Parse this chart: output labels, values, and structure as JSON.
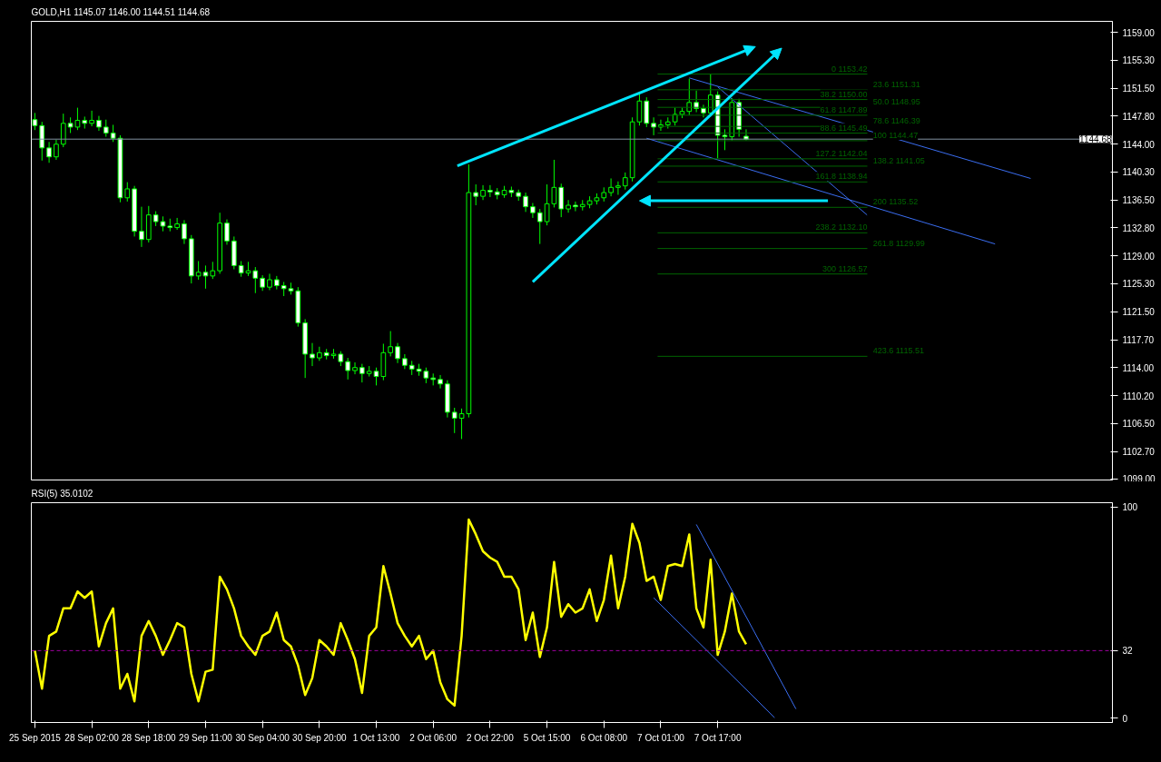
{
  "chart_data": [
    {
      "type": "candlestick",
      "title": "GOLD,H1  1145.07 1146.00 1144.51 1144.68",
      "color": "#00ff00",
      "categories": [
        null,
        null,
        null,
        null,
        null,
        null,
        null,
        null,
        null,
        null,
        null,
        null,
        null,
        null,
        null,
        null,
        null,
        null,
        null,
        null,
        null,
        null,
        null,
        null,
        null,
        null,
        null,
        null,
        null,
        null,
        null,
        null,
        null,
        null,
        null,
        null,
        null,
        null,
        null,
        null,
        null,
        null,
        null,
        null,
        null,
        null,
        null,
        null,
        null,
        null,
        null,
        null,
        null,
        null,
        null,
        null,
        null,
        null,
        null,
        null,
        null,
        null,
        null,
        null,
        null,
        null,
        null,
        null,
        null,
        null,
        null,
        null,
        null,
        null,
        null,
        null,
        null,
        null,
        null,
        null,
        null,
        null,
        null,
        null,
        null,
        null,
        null,
        null,
        null,
        null,
        null,
        null,
        null,
        null,
        null,
        null,
        null,
        null,
        null,
        null,
        null,
        null,
        null,
        null,
        null,
        null,
        null,
        null,
        null,
        null,
        null,
        null,
        null,
        null,
        null,
        null,
        null,
        null,
        null,
        null,
        null,
        null,
        null,
        null,
        null,
        null,
        null,
        null,
        null,
        null,
        null,
        null,
        null,
        null,
        null,
        null,
        null,
        null,
        null,
        null,
        null,
        null,
        null,
        null,
        null,
        null,
        null,
        null,
        null,
        null,
        null,
        null
      ],
      "ohlc": [
        [
          1147.3,
          1148.2,
          1145.9,
          1146.5
        ],
        [
          1146.5,
          1147.0,
          1141.8,
          1143.5
        ],
        [
          1143.5,
          1144.3,
          1141.5,
          1142.3
        ],
        [
          1142.3,
          1144.6,
          1141.9,
          1144.0
        ],
        [
          1144.0,
          1148.1,
          1143.6,
          1146.8
        ],
        [
          1146.8,
          1147.6,
          1145.5,
          1146.3
        ],
        [
          1146.3,
          1148.9,
          1145.9,
          1147.2
        ],
        [
          1147.2,
          1147.7,
          1146.1,
          1146.8
        ],
        [
          1146.8,
          1148.5,
          1146.4,
          1147.2
        ],
        [
          1147.2,
          1147.8,
          1145.8,
          1146.3
        ],
        [
          1146.3,
          1147.3,
          1145.0,
          1145.5
        ],
        [
          1145.5,
          1146.6,
          1144.3,
          1144.8
        ],
        [
          1144.8,
          1145.2,
          1136.2,
          1136.8
        ],
        [
          1136.8,
          1138.9,
          1136.3,
          1138.0
        ],
        [
          1138.0,
          1138.4,
          1131.6,
          1132.3
        ],
        [
          1132.3,
          1135.6,
          1130.2,
          1131.2
        ],
        [
          1131.2,
          1135.7,
          1130.8,
          1134.5
        ],
        [
          1134.5,
          1135.0,
          1133.0,
          1133.6
        ],
        [
          1133.6,
          1134.3,
          1132.3,
          1133.0
        ],
        [
          1133.0,
          1134.0,
          1132.3,
          1132.8
        ],
        [
          1132.8,
          1134.1,
          1132.5,
          1133.3
        ],
        [
          1133.3,
          1133.8,
          1130.6,
          1131.3
        ],
        [
          1131.3,
          1131.8,
          1125.3,
          1126.3
        ],
        [
          1126.3,
          1128.3,
          1125.8,
          1126.8
        ],
        [
          1126.8,
          1127.7,
          1124.6,
          1126.3
        ],
        [
          1126.3,
          1128.2,
          1125.9,
          1127.0
        ],
        [
          1127.0,
          1134.8,
          1126.6,
          1133.4
        ],
        [
          1133.4,
          1133.9,
          1130.5,
          1131.0
        ],
        [
          1131.0,
          1131.6,
          1127.2,
          1127.7
        ],
        [
          1127.7,
          1128.3,
          1126.2,
          1126.7
        ],
        [
          1126.7,
          1128.2,
          1126.3,
          1127.0
        ],
        [
          1127.0,
          1127.5,
          1124.0,
          1126.0
        ],
        [
          1126.0,
          1126.4,
          1124.3,
          1124.8
        ],
        [
          1124.8,
          1126.6,
          1124.4,
          1125.8
        ],
        [
          1125.8,
          1126.3,
          1124.5,
          1125.0
        ],
        [
          1125.0,
          1125.5,
          1123.6,
          1124.6
        ],
        [
          1124.6,
          1125.4,
          1123.8,
          1124.3
        ],
        [
          1124.3,
          1124.8,
          1119.5,
          1120.0
        ],
        [
          1120.0,
          1120.5,
          1112.6,
          1115.8
        ],
        [
          1115.8,
          1117.3,
          1114.2,
          1115.3
        ],
        [
          1115.3,
          1116.8,
          1114.9,
          1116.0
        ],
        [
          1116.0,
          1116.5,
          1115.1,
          1115.6
        ],
        [
          1115.6,
          1116.5,
          1115.2,
          1115.8
        ],
        [
          1115.8,
          1116.2,
          1114.2,
          1114.8
        ],
        [
          1114.8,
          1115.3,
          1112.4,
          1113.6
        ],
        [
          1113.6,
          1114.7,
          1113.1,
          1114.0
        ],
        [
          1114.0,
          1114.5,
          1112.0,
          1113.2
        ],
        [
          1113.2,
          1114.2,
          1112.8,
          1113.5
        ],
        [
          1113.5,
          1114.0,
          1111.6,
          1112.8
        ],
        [
          1112.8,
          1117.2,
          1112.3,
          1116.0
        ],
        [
          1116.0,
          1118.9,
          1115.5,
          1116.8
        ],
        [
          1116.8,
          1117.3,
          1114.6,
          1115.2
        ],
        [
          1115.2,
          1115.8,
          1113.8,
          1114.3
        ],
        [
          1114.3,
          1114.9,
          1113.0,
          1113.8
        ],
        [
          1113.8,
          1114.5,
          1112.9,
          1113.5
        ],
        [
          1113.5,
          1114.0,
          1111.9,
          1112.6
        ],
        [
          1112.6,
          1113.2,
          1111.6,
          1112.4
        ],
        [
          1112.4,
          1113.0,
          1111.2,
          1111.8
        ],
        [
          1111.8,
          1112.3,
          1107.3,
          1108.0
        ],
        [
          1108.0,
          1108.6,
          1105.2,
          1107.2
        ],
        [
          1107.2,
          1108.5,
          1104.4,
          1107.8
        ],
        [
          1107.8,
          1141.3,
          1107.3,
          1137.5
        ],
        [
          1137.5,
          1138.6,
          1135.8,
          1137.0
        ],
        [
          1137.0,
          1138.5,
          1136.5,
          1137.8
        ],
        [
          1137.8,
          1138.5,
          1136.9,
          1137.6
        ],
        [
          1137.6,
          1138.1,
          1136.6,
          1137.2
        ],
        [
          1137.2,
          1138.4,
          1136.8,
          1137.8
        ],
        [
          1137.8,
          1138.3,
          1136.9,
          1137.5
        ],
        [
          1137.5,
          1137.9,
          1136.4,
          1137.0
        ],
        [
          1137.0,
          1137.5,
          1134.9,
          1135.6
        ],
        [
          1135.6,
          1136.1,
          1134.1,
          1134.8
        ],
        [
          1134.8,
          1135.3,
          1130.6,
          1133.6
        ],
        [
          1133.6,
          1138.6,
          1133.1,
          1136.0
        ],
        [
          1136.0,
          1141.9,
          1135.5,
          1138.2
        ],
        [
          1138.2,
          1138.7,
          1134.2,
          1135.3
        ],
        [
          1135.3,
          1136.5,
          1134.8,
          1135.8
        ],
        [
          1135.8,
          1136.3,
          1135.0,
          1135.6
        ],
        [
          1135.6,
          1136.5,
          1135.1,
          1135.9
        ],
        [
          1135.9,
          1137.0,
          1135.4,
          1136.4
        ],
        [
          1136.4,
          1137.4,
          1135.9,
          1136.8
        ],
        [
          1136.8,
          1138.2,
          1136.3,
          1137.5
        ],
        [
          1137.5,
          1139.4,
          1137.0,
          1138.2
        ],
        [
          1138.2,
          1139.0,
          1137.2,
          1138.4
        ],
        [
          1138.4,
          1140.2,
          1137.9,
          1139.5
        ],
        [
          1139.5,
          1147.6,
          1139.0,
          1147.0
        ],
        [
          1147.0,
          1151.0,
          1146.5,
          1149.8
        ],
        [
          1149.8,
          1150.3,
          1146.3,
          1146.8
        ],
        [
          1146.8,
          1147.6,
          1145.2,
          1146.3
        ],
        [
          1146.3,
          1147.3,
          1145.8,
          1146.6
        ],
        [
          1146.6,
          1147.6,
          1146.1,
          1147.0
        ],
        [
          1147.0,
          1148.9,
          1146.5,
          1148.0
        ],
        [
          1148.0,
          1148.9,
          1147.5,
          1148.4
        ],
        [
          1148.4,
          1152.8,
          1147.9,
          1149.6
        ],
        [
          1149.6,
          1151.2,
          1148.3,
          1148.8
        ],
        [
          1148.8,
          1149.3,
          1147.6,
          1148.2
        ],
        [
          1148.2,
          1153.4,
          1147.7,
          1150.6
        ],
        [
          1150.6,
          1151.1,
          1142.1,
          1145.2
        ],
        [
          1145.2,
          1146.0,
          1143.2,
          1145.0
        ],
        [
          1145.0,
          1150.2,
          1144.5,
          1149.6
        ],
        [
          1149.6,
          1150.1,
          1145.0,
          1146.0
        ],
        [
          1145.07,
          1146.0,
          1144.51,
          1144.68
        ],
        null,
        null,
        null,
        null,
        null,
        null,
        null,
        null,
        null,
        null,
        null,
        null,
        null,
        null,
        null,
        null,
        null,
        null,
        null,
        null,
        null,
        null,
        null,
        null,
        null,
        null,
        null,
        null,
        null,
        null,
        null,
        null,
        null,
        null,
        null,
        null,
        null,
        null,
        null,
        null,
        null,
        null,
        null,
        null,
        null,
        null,
        null,
        null,
        null,
        null,
        null
      ],
      "series": [
        {
          "type": "line",
          "color": "#3a6df0",
          "values": [
            null,
            null,
            null,
            null,
            null,
            null,
            null,
            null,
            null,
            null,
            null,
            null,
            null,
            null,
            null,
            null,
            null,
            null,
            null,
            null,
            null,
            null,
            null,
            null,
            null,
            null,
            null,
            null,
            null,
            null,
            null,
            null,
            null,
            null,
            null,
            null,
            null,
            null,
            null,
            null,
            null,
            null,
            null,
            null,
            null,
            null,
            null,
            null,
            null,
            null,
            null,
            null,
            null,
            null,
            null,
            null,
            null,
            null,
            null,
            null,
            null,
            null,
            null,
            null,
            null,
            null,
            null,
            null,
            null,
            null,
            null,
            null,
            null,
            null,
            null,
            null,
            null,
            null,
            null,
            null,
            null,
            null,
            null,
            null,
            null,
            null,
            1144.8,
            null,
            null,
            null,
            null,
            null,
            null,
            null,
            null,
            null,
            null,
            null,
            null,
            null,
            null,
            null,
            null,
            null,
            null,
            null,
            null,
            null,
            null,
            null,
            null,
            null,
            null,
            null,
            null,
            null,
            null,
            null,
            null,
            null,
            null,
            null,
            null,
            null,
            null,
            null,
            null,
            null,
            null,
            null,
            null,
            null,
            null,
            null,
            null,
            1130.6,
            null,
            null,
            null,
            null,
            null,
            null,
            null,
            null,
            null,
            null,
            null,
            null,
            null,
            null,
            null,
            null
          ]
        },
        {
          "type": "line",
          "color": "#3a6df0",
          "values": [
            null,
            null,
            null,
            null,
            null,
            null,
            null,
            null,
            null,
            null,
            null,
            null,
            null,
            null,
            null,
            null,
            null,
            null,
            null,
            null,
            null,
            null,
            null,
            null,
            null,
            null,
            null,
            null,
            null,
            null,
            null,
            null,
            null,
            null,
            null,
            null,
            null,
            null,
            null,
            null,
            null,
            null,
            null,
            null,
            null,
            null,
            null,
            null,
            null,
            null,
            null,
            null,
            null,
            null,
            null,
            null,
            null,
            null,
            null,
            null,
            null,
            null,
            null,
            null,
            null,
            null,
            null,
            null,
            null,
            null,
            null,
            null,
            null,
            null,
            null,
            null,
            null,
            null,
            null,
            null,
            null,
            null,
            null,
            null,
            null,
            null,
            null,
            null,
            null,
            null,
            null,
            null,
            1152.9,
            null,
            null,
            null,
            null,
            null,
            null,
            null,
            null,
            null,
            null,
            null,
            null,
            null,
            null,
            null,
            null,
            null,
            null,
            null,
            null,
            null,
            null,
            null,
            null,
            null,
            null,
            null,
            null,
            null,
            null,
            null,
            null,
            null,
            null,
            null,
            null,
            null,
            null,
            null,
            null,
            null,
            null,
            null,
            null,
            null,
            null,
            null,
            1139.4,
            null,
            null,
            null,
            null,
            null,
            null,
            null,
            null,
            null,
            null,
            null
          ]
        },
        {
          "type": "line",
          "color": "#3a6df0",
          "values": [
            null,
            null,
            null,
            null,
            null,
            null,
            null,
            null,
            null,
            null,
            null,
            null,
            null,
            null,
            null,
            null,
            null,
            null,
            null,
            null,
            null,
            null,
            null,
            null,
            null,
            null,
            null,
            null,
            null,
            null,
            null,
            null,
            null,
            null,
            null,
            null,
            null,
            null,
            null,
            null,
            null,
            null,
            null,
            null,
            null,
            null,
            null,
            null,
            null,
            null,
            null,
            null,
            null,
            null,
            null,
            null,
            null,
            null,
            null,
            null,
            null,
            null,
            null,
            null,
            null,
            null,
            null,
            null,
            null,
            null,
            null,
            null,
            null,
            null,
            null,
            null,
            null,
            null,
            null,
            null,
            null,
            null,
            null,
            null,
            null,
            null,
            null,
            null,
            null,
            null,
            null,
            null,
            null,
            null,
            null,
            null,
            1151.7,
            null,
            null,
            null,
            null,
            null,
            null,
            null,
            null,
            null,
            null,
            null,
            null,
            null,
            null,
            null,
            null,
            null,
            null,
            null,
            null,
            1134.5,
            null,
            null,
            null,
            null,
            null,
            null,
            null,
            null,
            null,
            null,
            null,
            null,
            null,
            null,
            null,
            null,
            null,
            null,
            null,
            null,
            null,
            null,
            null,
            null,
            null,
            null,
            null,
            null,
            null,
            null,
            null,
            null,
            null,
            null
          ]
        }
      ],
      "ylim": [
        1098.9,
        1160.5
      ],
      "yticks": [
        {
          "value": 1159,
          "label": "1159.00"
        },
        {
          "value": 1155.3,
          "label": "1155.30"
        },
        {
          "value": 1151.5,
          "label": "1151.50"
        },
        {
          "value": 1147.8,
          "label": "1147.80"
        },
        {
          "value": 1144,
          "label": "1144.00"
        },
        {
          "value": 1140.3,
          "label": "1140.30"
        },
        {
          "value": 1136.5,
          "label": "1136.50"
        },
        {
          "value": 1132.8,
          "label": "1132.80"
        },
        {
          "value": 1129,
          "label": "1129.00"
        },
        {
          "value": 1125.3,
          "label": "1125.30"
        },
        {
          "value": 1121.5,
          "label": "1121.50"
        },
        {
          "value": 1117.7,
          "label": "1117.70"
        },
        {
          "value": 1114,
          "label": "1114.00"
        },
        {
          "value": 1110.2,
          "label": "1110.20"
        },
        {
          "value": 1106.5,
          "label": "1106.50"
        },
        {
          "value": 1102.7,
          "label": "1102.70"
        },
        {
          "value": 1099,
          "label": "1099.00"
        }
      ],
      "tick_labels": "y",
      "ref_lines": [
        {
          "axis": "y",
          "value": 1144.68,
          "label": "1144.68",
          "color": "#8090a0"
        },
        {
          "axis": "y",
          "value": 1153.42,
          "label": "0 1153.42",
          "color": "#006400"
        },
        {
          "axis": "y",
          "value": 1151.31,
          "label": "23.6 1151.31",
          "color": "#006400"
        },
        {
          "axis": "y",
          "value": 1150.0,
          "label": "38.2 1150.00",
          "color": "#006400"
        },
        {
          "axis": "y",
          "value": 1148.95,
          "label": "50.0 1148.95",
          "color": "#006400"
        },
        {
          "axis": "y",
          "value": 1147.89,
          "label": "61.8 1147.89",
          "color": "#006400"
        },
        {
          "axis": "y",
          "value": 1146.39,
          "label": "78.6 1146.39",
          "color": "#006400"
        },
        {
          "axis": "y",
          "value": 1145.49,
          "label": "88.6 1145.49",
          "color": "#006400"
        },
        {
          "axis": "y",
          "value": 1144.47,
          "label": "100 1144.47",
          "color": "#006400"
        },
        {
          "axis": "y",
          "value": 1142.04,
          "label": "127.2 1142.04",
          "color": "#006400"
        },
        {
          "axis": "y",
          "value": 1141.05,
          "label": "138.2 1141.05",
          "color": "#006400"
        },
        {
          "axis": "y",
          "value": 1138.94,
          "label": "161.8 1138.94",
          "color": "#006400"
        },
        {
          "axis": "y",
          "value": 1135.52,
          "label": "200 1135.52",
          "color": "#006400"
        },
        {
          "axis": "y",
          "value": 1132.1,
          "label": "238.2 1132.10",
          "color": "#006400"
        },
        {
          "axis": "y",
          "value": 1129.99,
          "label": "261.8 1129.99",
          "color": "#006400"
        },
        {
          "axis": "y",
          "value": 1126.57,
          "label": "300 1126.57",
          "color": "#006400"
        },
        {
          "axis": "y",
          "value": 1115.51,
          "label": "423.6 1115.51",
          "color": "#006400"
        }
      ]
    },
    {
      "type": "line",
      "title": "RSI(5) 35.0102",
      "categories": [
        "25 Sep 2015",
        null,
        null,
        null,
        null,
        null,
        null,
        null,
        "28 Sep 02:00",
        null,
        null,
        null,
        null,
        null,
        null,
        null,
        "28 Sep 18:00",
        null,
        null,
        null,
        null,
        null,
        null,
        null,
        "29 Sep 11:00",
        null,
        null,
        null,
        null,
        null,
        null,
        null,
        "30 Sep 04:00",
        null,
        null,
        null,
        null,
        null,
        null,
        null,
        "30 Sep 20:00",
        null,
        null,
        null,
        null,
        null,
        null,
        null,
        "1 Oct 13:00",
        null,
        null,
        null,
        null,
        null,
        null,
        null,
        "2 Oct 06:00",
        null,
        null,
        null,
        null,
        null,
        null,
        null,
        "2 Oct 22:00",
        null,
        null,
        null,
        null,
        null,
        null,
        null,
        "5 Oct 15:00",
        null,
        null,
        null,
        null,
        null,
        null,
        null,
        "6 Oct 08:00",
        null,
        null,
        null,
        null,
        null,
        null,
        null,
        "7 Oct 01:00",
        null,
        null,
        null,
        null,
        null,
        null,
        null,
        "7 Oct 17:00",
        null,
        null,
        null,
        null,
        null,
        null,
        null,
        null,
        null,
        null,
        null,
        null,
        null,
        null,
        null,
        null,
        null,
        null,
        null,
        null,
        null,
        null,
        null,
        null,
        null,
        null,
        null,
        null,
        null,
        null,
        null,
        null,
        null,
        null,
        null,
        null,
        null,
        null,
        null,
        null,
        null,
        null,
        null,
        null,
        null,
        null,
        null,
        null,
        null,
        null,
        null,
        null,
        null,
        null,
        null
      ],
      "series": [
        {
          "color": "#ffff00",
          "values": [
            32,
            14,
            39,
            41,
            52,
            52,
            60,
            57,
            60,
            34,
            45,
            52,
            14,
            21,
            8,
            39,
            46,
            39,
            30,
            37,
            45,
            43,
            21,
            8,
            22,
            23,
            67,
            61,
            52,
            39,
            34,
            30,
            39,
            41,
            50,
            37,
            34,
            25,
            11,
            19,
            37,
            34,
            30,
            45,
            37,
            28,
            12,
            39,
            43,
            72,
            59,
            45,
            39,
            34,
            39,
            28,
            32,
            17,
            9,
            6,
            39,
            94,
            87,
            79,
            76,
            74,
            67,
            67,
            61,
            37,
            50,
            29,
            43,
            74,
            48,
            54,
            50,
            52,
            61,
            46,
            56,
            77,
            52,
            67,
            92,
            83,
            65,
            67,
            56,
            72,
            73,
            72,
            87,
            52,
            43,
            75,
            30,
            41,
            59,
            41,
            35,
            null,
            null,
            null,
            null,
            null,
            null,
            null,
            null,
            null,
            null,
            null,
            null,
            null,
            null,
            null,
            null,
            null,
            null,
            null,
            null,
            null,
            null,
            null,
            null,
            null,
            null,
            null,
            null,
            null,
            null,
            null,
            null,
            null,
            null,
            null,
            null,
            null,
            null,
            null,
            null,
            null,
            null,
            null,
            null,
            null,
            null,
            null,
            null,
            null,
            null,
            null
          ]
        },
        {
          "type": "line",
          "color": "#3a6df0",
          "values": [
            null,
            null,
            null,
            null,
            null,
            null,
            null,
            null,
            null,
            null,
            null,
            null,
            null,
            null,
            null,
            null,
            null,
            null,
            null,
            null,
            null,
            null,
            null,
            null,
            null,
            null,
            null,
            null,
            null,
            null,
            null,
            null,
            null,
            null,
            null,
            null,
            null,
            null,
            null,
            null,
            null,
            null,
            null,
            null,
            null,
            null,
            null,
            null,
            null,
            null,
            null,
            null,
            null,
            null,
            null,
            null,
            null,
            null,
            null,
            null,
            null,
            null,
            null,
            null,
            null,
            null,
            null,
            null,
            null,
            null,
            null,
            null,
            null,
            null,
            null,
            null,
            null,
            null,
            null,
            null,
            null,
            null,
            null,
            null,
            null,
            null,
            null,
            57,
            null,
            null,
            null,
            null,
            null,
            null,
            null,
            null,
            null,
            null,
            null,
            null,
            null,
            null,
            null,
            null,
            0.3,
            null,
            null,
            null,
            null,
            null,
            null,
            null,
            null,
            null,
            null,
            null,
            null,
            null,
            null,
            null,
            null,
            null,
            null,
            null,
            null,
            null,
            null,
            null,
            null,
            null,
            null,
            null,
            null,
            null,
            null,
            null,
            null,
            null,
            null,
            null,
            null,
            null,
            null,
            null,
            null,
            null,
            null,
            null,
            null,
            null,
            null,
            null
          ]
        },
        {
          "type": "line",
          "color": "#3a6df0",
          "values": [
            null,
            null,
            null,
            null,
            null,
            null,
            null,
            null,
            null,
            null,
            null,
            null,
            null,
            null,
            null,
            null,
            null,
            null,
            null,
            null,
            null,
            null,
            null,
            null,
            null,
            null,
            null,
            null,
            null,
            null,
            null,
            null,
            null,
            null,
            null,
            null,
            null,
            null,
            null,
            null,
            null,
            null,
            null,
            null,
            null,
            null,
            null,
            null,
            null,
            null,
            null,
            null,
            null,
            null,
            null,
            null,
            null,
            null,
            null,
            null,
            null,
            null,
            null,
            null,
            null,
            null,
            null,
            null,
            null,
            null,
            null,
            null,
            null,
            null,
            null,
            null,
            null,
            null,
            null,
            null,
            null,
            null,
            null,
            null,
            null,
            null,
            null,
            null,
            null,
            null,
            null,
            null,
            null,
            91.7,
            null,
            null,
            null,
            null,
            null,
            null,
            null,
            null,
            null,
            null,
            null,
            null,
            null,
            4.4,
            null,
            null,
            null,
            null,
            null,
            null,
            null,
            null,
            null,
            null,
            null,
            null,
            null,
            null,
            null,
            null,
            null,
            null,
            null,
            null,
            null,
            null,
            null,
            null,
            null,
            null,
            null,
            null,
            null,
            null,
            null,
            null,
            null,
            null,
            null,
            null,
            null,
            null,
            null,
            null,
            null,
            null,
            null,
            null
          ]
        }
      ],
      "ylim": [
        -2,
        102
      ],
      "yticks": [
        0,
        32,
        100
      ],
      "ref_lines": [
        {
          "axis": "y",
          "value": 32,
          "color": "#a000a0",
          "line_style": "dashed"
        }
      ]
    }
  ]
}
